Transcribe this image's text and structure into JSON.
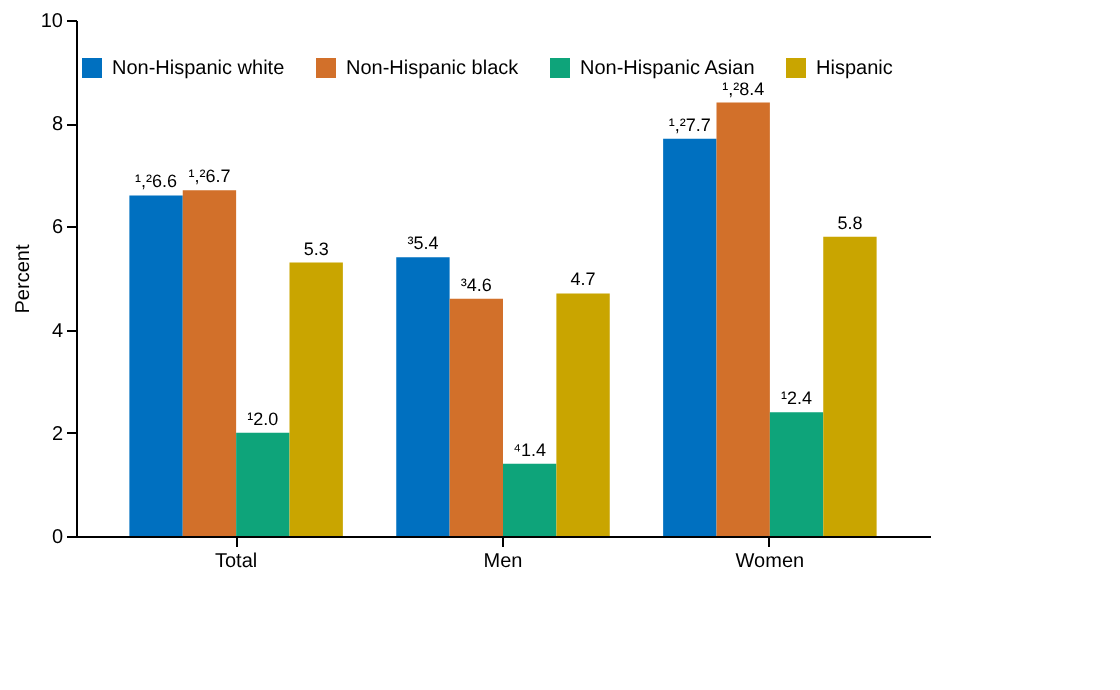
{
  "chart_data": {
    "type": "bar",
    "ylabel": "Percent",
    "categories": [
      "Total",
      "Men",
      "Women"
    ],
    "series": [
      {
        "name": "Non-Hispanic white",
        "color": "#0070c0",
        "values": [
          6.6,
          5.4,
          7.7
        ],
        "value_labels": [
          "¹,²6.6",
          "³5.4",
          "¹,²7.7"
        ]
      },
      {
        "name": "Non-Hispanic black",
        "color": "#d2702a",
        "values": [
          6.7,
          4.6,
          8.4
        ],
        "value_labels": [
          "¹,²6.7",
          "³4.6",
          "¹,²8.4"
        ]
      },
      {
        "name": "Non-Hispanic Asian",
        "color": "#0ea47a",
        "values": [
          2.0,
          1.4,
          2.4
        ],
        "value_labels": [
          "¹2.0",
          "⁴1.4",
          "¹2.4"
        ]
      },
      {
        "name": "Hispanic",
        "color": "#c9a500",
        "values": [
          5.3,
          4.7,
          5.8
        ],
        "value_labels": [
          "5.3",
          "4.7",
          "5.8"
        ]
      }
    ],
    "ylim": [
      0,
      10
    ],
    "yticks": [
      0,
      2,
      4,
      6,
      8,
      10
    ],
    "grid": false,
    "legend": "top right"
  }
}
